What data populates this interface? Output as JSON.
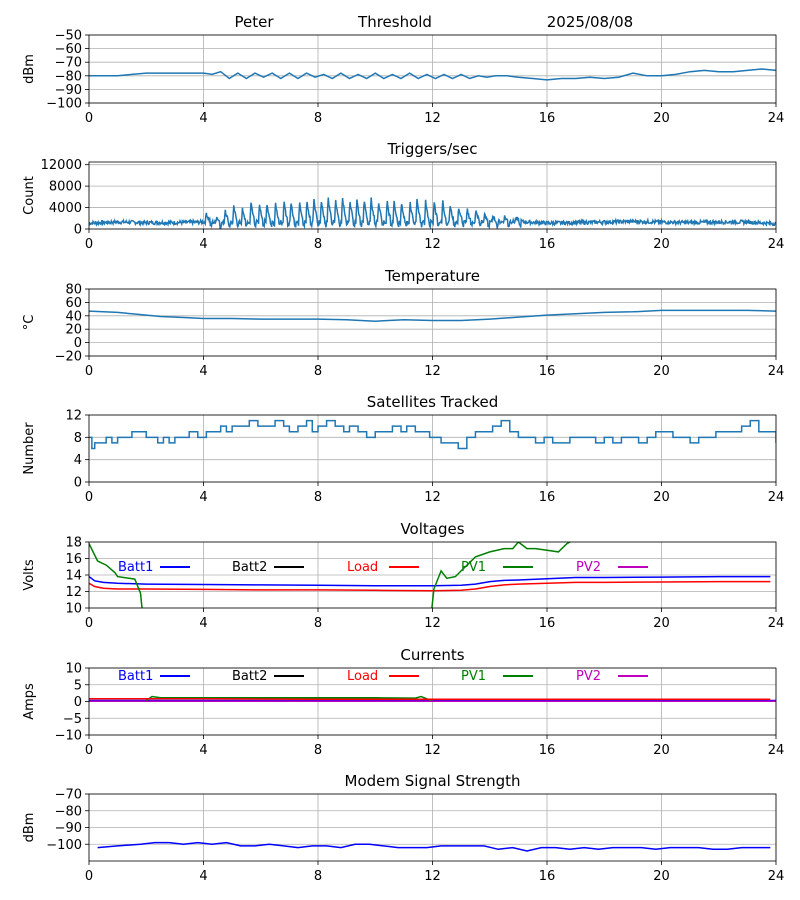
{
  "header": {
    "left": "Peter",
    "center": "Threshold",
    "right": "2025/08/08"
  },
  "chart_data": [
    {
      "id": "threshold",
      "type": "line",
      "title": "",
      "ylabel": "dBm",
      "xlim": [
        0,
        24
      ],
      "xticks": [
        0,
        4,
        8,
        12,
        16,
        20,
        24
      ],
      "ylim": [
        -100,
        -50
      ],
      "yticks": [
        -100,
        -90,
        -80,
        -70,
        -60,
        -50
      ],
      "grid": true,
      "series": [
        {
          "color": "#1f77b4",
          "x": [
            0,
            0.5,
            1,
            1.5,
            2,
            2.5,
            3,
            3.5,
            4,
            4.3,
            4.6,
            4.9,
            5.2,
            5.5,
            5.8,
            6.1,
            6.4,
            6.7,
            7,
            7.3,
            7.6,
            7.9,
            8.2,
            8.5,
            8.8,
            9.1,
            9.4,
            9.7,
            10,
            10.3,
            10.6,
            10.9,
            11.2,
            11.5,
            11.8,
            12.1,
            12.4,
            12.7,
            13,
            13.3,
            13.6,
            13.9,
            14.2,
            14.6,
            15,
            15.5,
            16,
            16.5,
            17,
            17.5,
            18,
            18.5,
            19,
            19.5,
            20,
            20.5,
            21,
            21.5,
            22,
            22.5,
            23,
            23.5,
            24
          ],
          "y": [
            -80,
            -80,
            -80,
            -79,
            -78,
            -78,
            -78,
            -78,
            -78,
            -79,
            -77,
            -82,
            -78,
            -82,
            -78,
            -81,
            -78,
            -82,
            -78,
            -82,
            -78,
            -81,
            -79,
            -82,
            -78,
            -82,
            -79,
            -82,
            -78,
            -82,
            -79,
            -82,
            -78,
            -82,
            -79,
            -82,
            -79,
            -82,
            -79,
            -82,
            -80,
            -81,
            -80,
            -80,
            -81,
            -82,
            -83,
            -82,
            -82,
            -81,
            -82,
            -81,
            -78,
            -80,
            -80,
            -79,
            -77,
            -76,
            -77,
            -77,
            -76,
            -75,
            -76
          ]
        }
      ]
    },
    {
      "id": "triggers",
      "type": "line",
      "title": "Triggers/sec",
      "ylabel": "Count",
      "xlim": [
        0,
        24
      ],
      "xticks": [
        0,
        4,
        8,
        12,
        16,
        20,
        24
      ],
      "ylim": [
        0,
        12500
      ],
      "yticks": [
        0,
        4000,
        8000,
        12000
      ],
      "grid": true,
      "baseline": [
        [
          0,
          1100
        ],
        [
          1,
          1300
        ],
        [
          2,
          1200
        ],
        [
          3,
          1200
        ],
        [
          4,
          1300
        ],
        [
          5,
          1000
        ],
        [
          6,
          1000
        ],
        [
          7,
          900
        ],
        [
          8,
          900
        ],
        [
          9,
          900
        ],
        [
          10,
          900
        ],
        [
          11,
          900
        ],
        [
          12,
          900
        ],
        [
          13,
          1100
        ],
        [
          14,
          1300
        ],
        [
          15,
          1400
        ],
        [
          16,
          1100
        ],
        [
          17,
          1200
        ],
        [
          18,
          1300
        ],
        [
          19,
          1400
        ],
        [
          20,
          1300
        ],
        [
          21,
          1200
        ],
        [
          22,
          1300
        ],
        [
          23,
          1300
        ],
        [
          24,
          1000
        ]
      ],
      "spikes": [
        [
          4.1,
          3000
        ],
        [
          4.45,
          2500
        ],
        [
          4.75,
          4000
        ],
        [
          5.05,
          4500
        ],
        [
          5.35,
          4000
        ],
        [
          5.65,
          5500
        ],
        [
          5.95,
          5000
        ],
        [
          6.2,
          5800
        ],
        [
          6.5,
          6000
        ],
        [
          6.8,
          6000
        ],
        [
          7.05,
          5500
        ],
        [
          7.35,
          5800
        ],
        [
          7.6,
          6000
        ],
        [
          7.85,
          6200
        ],
        [
          8.1,
          6600
        ],
        [
          8.35,
          6300
        ],
        [
          8.6,
          6400
        ],
        [
          8.85,
          6600
        ],
        [
          9.1,
          6500
        ],
        [
          9.35,
          6300
        ],
        [
          9.6,
          6400
        ],
        [
          9.85,
          6200
        ],
        [
          10.1,
          6000
        ],
        [
          10.4,
          6200
        ],
        [
          10.65,
          6000
        ],
        [
          10.9,
          6000
        ],
        [
          11.2,
          6200
        ],
        [
          11.45,
          6000
        ],
        [
          11.75,
          5800
        ],
        [
          12.05,
          5800
        ],
        [
          12.35,
          5700
        ],
        [
          12.6,
          5200
        ],
        [
          12.9,
          4800
        ],
        [
          13.2,
          4200
        ],
        [
          13.5,
          3800
        ],
        [
          13.8,
          3000
        ],
        [
          14.1,
          2500
        ],
        [
          14.5,
          2600
        ],
        [
          14.9,
          2200
        ]
      ],
      "series": [
        {
          "color": "#1f77b4"
        }
      ]
    },
    {
      "id": "temperature",
      "type": "line",
      "title": "Temperature",
      "ylabel": "°C",
      "xlim": [
        0,
        24
      ],
      "xticks": [
        0,
        4,
        8,
        12,
        16,
        20,
        24
      ],
      "ylim": [
        -20,
        80
      ],
      "yticks": [
        -20,
        0,
        20,
        40,
        60,
        80
      ],
      "grid": true,
      "series": [
        {
          "color": "#1f77b4",
          "x": [
            0,
            0.5,
            1,
            1.5,
            2,
            2.5,
            3,
            3.5,
            4,
            5,
            6,
            7,
            8,
            9,
            10,
            11,
            12,
            13,
            14,
            15,
            16,
            17,
            18,
            19,
            20,
            21,
            22,
            23,
            24
          ],
          "y": [
            47,
            46,
            45,
            43,
            41,
            39,
            38,
            37,
            36,
            36,
            35,
            35,
            35,
            34,
            32,
            34,
            33,
            33,
            35,
            38,
            41,
            43,
            45,
            46,
            48,
            48,
            48,
            48,
            47
          ]
        }
      ]
    },
    {
      "id": "satellites",
      "type": "line",
      "title": "Satellites Tracked",
      "ylabel": "Number",
      "xlim": [
        0,
        24
      ],
      "xticks": [
        0,
        4,
        8,
        12,
        16,
        20,
        24
      ],
      "ylim": [
        0,
        12
      ],
      "yticks": [
        0,
        4,
        8,
        12
      ],
      "grid": true,
      "series": [
        {
          "color": "#1f77b4",
          "x": [
            0,
            0.1,
            0.2,
            0.4,
            0.6,
            0.8,
            1.0,
            1.3,
            1.5,
            1.8,
            2.0,
            2.4,
            2.6,
            2.8,
            3.0,
            3.3,
            3.5,
            3.8,
            4.1,
            4.4,
            4.6,
            4.8,
            5.0,
            5.3,
            5.6,
            5.9,
            6.2,
            6.5,
            6.8,
            7.0,
            7.3,
            7.6,
            7.8,
            8.0,
            8.3,
            8.6,
            8.9,
            9.1,
            9.4,
            9.7,
            10.0,
            10.3,
            10.6,
            10.9,
            11.1,
            11.4,
            11.7,
            11.9,
            12.1,
            12.3,
            12.6,
            12.9,
            13.2,
            13.5,
            13.8,
            14.1,
            14.4,
            14.7,
            15.0,
            15.3,
            15.6,
            15.9,
            16.2,
            16.5,
            16.8,
            17.1,
            17.4,
            17.7,
            18.0,
            18.3,
            18.6,
            18.9,
            19.2,
            19.5,
            19.8,
            20.1,
            20.4,
            20.7,
            21.0,
            21.3,
            21.6,
            21.9,
            22.2,
            22.5,
            22.8,
            23.1,
            23.4,
            23.7,
            24
          ],
          "y": [
            8,
            6,
            7,
            7,
            8,
            7,
            8,
            8,
            9,
            9,
            8,
            7,
            8,
            7,
            8,
            8,
            9,
            8,
            9,
            9,
            10,
            9,
            10,
            10,
            11,
            10,
            10,
            11,
            10,
            9,
            10,
            11,
            9,
            10,
            11,
            10,
            9,
            10,
            9,
            8,
            9,
            9,
            10,
            9,
            10,
            9,
            9,
            8,
            8,
            7,
            7,
            6,
            8,
            9,
            9,
            10,
            11,
            9,
            8,
            8,
            7,
            8,
            7,
            7,
            8,
            8,
            8,
            7,
            8,
            7,
            8,
            8,
            7,
            8,
            9,
            9,
            8,
            8,
            7,
            8,
            8,
            9,
            9,
            9,
            10,
            11,
            9,
            9,
            7
          ]
        }
      ]
    },
    {
      "id": "voltages",
      "type": "line",
      "title": "Voltages",
      "ylabel": "Volts",
      "xlim": [
        0,
        24
      ],
      "xticks": [
        0,
        4,
        8,
        12,
        16,
        20,
        24
      ],
      "ylim": [
        10,
        18
      ],
      "yticks": [
        10,
        12,
        14,
        16,
        18
      ],
      "grid": true,
      "legend": [
        "Batt1",
        "Batt2",
        "Load",
        "PV1",
        "PV2"
      ],
      "series": [
        {
          "name": "Batt1",
          "color": "#0000ff",
          "x": [
            0,
            0.2,
            0.5,
            1,
            2,
            4,
            6,
            8,
            10,
            12,
            13,
            13.5,
            14,
            14.5,
            15,
            16,
            17,
            18,
            20,
            22,
            23.8
          ],
          "y": [
            13.8,
            13.3,
            13.1,
            13.0,
            12.9,
            12.85,
            12.8,
            12.75,
            12.7,
            12.7,
            12.75,
            12.9,
            13.2,
            13.35,
            13.4,
            13.55,
            13.7,
            13.7,
            13.75,
            13.8,
            13.8
          ]
        },
        {
          "name": "Load",
          "color": "#ff0000",
          "x": [
            0,
            0.2,
            0.5,
            1,
            2,
            4,
            6,
            8,
            10,
            12,
            13,
            13.5,
            14,
            14.5,
            15,
            16,
            17,
            18,
            20,
            22,
            23.8
          ],
          "y": [
            13.0,
            12.6,
            12.4,
            12.3,
            12.3,
            12.25,
            12.2,
            12.2,
            12.15,
            12.1,
            12.15,
            12.3,
            12.6,
            12.8,
            12.9,
            13.0,
            13.1,
            13.1,
            13.15,
            13.2,
            13.2
          ]
        },
        {
          "name": "PV1",
          "color": "#008000",
          "x": [
            0,
            0.3,
            0.6,
            0.9,
            1.0,
            1.4,
            1.6,
            1.8,
            1.85
          ],
          "y": [
            17.8,
            15.7,
            15.2,
            14.3,
            13.8,
            13.6,
            13.5,
            11.8,
            10.0
          ]
        },
        {
          "name": "PV1",
          "color": "#008000",
          "x": [
            11.98,
            12.05,
            12.3,
            12.5,
            12.8,
            13.0,
            13.3,
            13.5,
            14.0,
            14.5,
            14.8,
            15.0,
            15.3,
            15.6,
            16.0,
            16.4,
            16.7,
            16.9
          ],
          "y": [
            10.0,
            12.3,
            14.5,
            13.6,
            13.8,
            14.5,
            15.5,
            16.2,
            16.8,
            17.2,
            17.2,
            18.0,
            17.2,
            17.2,
            17.0,
            16.8,
            17.8,
            18.2
          ]
        }
      ]
    },
    {
      "id": "currents",
      "type": "line",
      "title": "Currents",
      "ylabel": "Amps",
      "xlim": [
        0,
        24
      ],
      "xticks": [
        0,
        4,
        8,
        12,
        16,
        20,
        24
      ],
      "ylim": [
        -10,
        10
      ],
      "yticks": [
        -10,
        -5,
        0,
        5,
        10
      ],
      "grid": true,
      "legend": [
        "Batt1",
        "Batt2",
        "Load",
        "PV1",
        "PV2"
      ],
      "series": [
        {
          "name": "Batt1",
          "color": "#0000ff",
          "x": [
            0,
            24
          ],
          "y": [
            0.3,
            0.3
          ]
        },
        {
          "name": "PV2",
          "color": "#bf00bf",
          "x": [
            0,
            24
          ],
          "y": [
            0.1,
            0.1
          ]
        },
        {
          "name": "PV1",
          "color": "#008000",
          "x": [
            2.0,
            2.2,
            2.5,
            3,
            4,
            6,
            8,
            10,
            11.4,
            11.6,
            11.8,
            12.0
          ],
          "y": [
            0.3,
            1.5,
            1.1,
            1.1,
            1.1,
            1.1,
            1.1,
            1.1,
            1.0,
            1.5,
            0.8,
            0.3
          ]
        },
        {
          "name": "Load",
          "color": "#ff0000",
          "x": [
            0,
            4,
            8,
            12,
            16,
            20,
            23.8
          ],
          "y": [
            0.8,
            0.8,
            0.7,
            0.7,
            0.7,
            0.7,
            0.7
          ]
        }
      ]
    },
    {
      "id": "modem",
      "type": "line",
      "title": "Modem Signal Strength",
      "ylabel": "dBm",
      "xlim": [
        0,
        24
      ],
      "xticks": [
        0,
        4,
        8,
        12,
        16,
        20,
        24
      ],
      "ylim": [
        -110,
        -70
      ],
      "yticks": [
        -100,
        -90,
        -80,
        -70
      ],
      "grid": true,
      "series": [
        {
          "color": "#0000ff",
          "x": [
            0.3,
            1,
            1.8,
            2.3,
            2.8,
            3.3,
            3.8,
            4.3,
            4.8,
            5.3,
            5.8,
            6.3,
            6.8,
            7.3,
            7.8,
            8.3,
            8.8,
            9.3,
            9.8,
            10.3,
            10.8,
            11.3,
            11.8,
            12.3,
            12.8,
            13.3,
            13.8,
            14.3,
            14.8,
            15.3,
            15.8,
            16.3,
            16.8,
            17.3,
            17.8,
            18.3,
            18.8,
            19.3,
            19.8,
            20.3,
            20.8,
            21.3,
            21.8,
            22.3,
            22.8,
            23.3,
            23.8
          ],
          "y": [
            -102,
            -101,
            -100,
            -99,
            -99,
            -100,
            -99,
            -100,
            -99,
            -101,
            -101,
            -100,
            -101,
            -102,
            -101,
            -101,
            -102,
            -100,
            -100,
            -101,
            -102,
            -102,
            -102,
            -101,
            -101,
            -101,
            -101,
            -103,
            -102,
            -104,
            -102,
            -102,
            -103,
            -102,
            -103,
            -102,
            -102,
            -102,
            -103,
            -102,
            -102,
            -102,
            -103,
            -103,
            -102,
            -102,
            -102
          ]
        }
      ]
    }
  ]
}
